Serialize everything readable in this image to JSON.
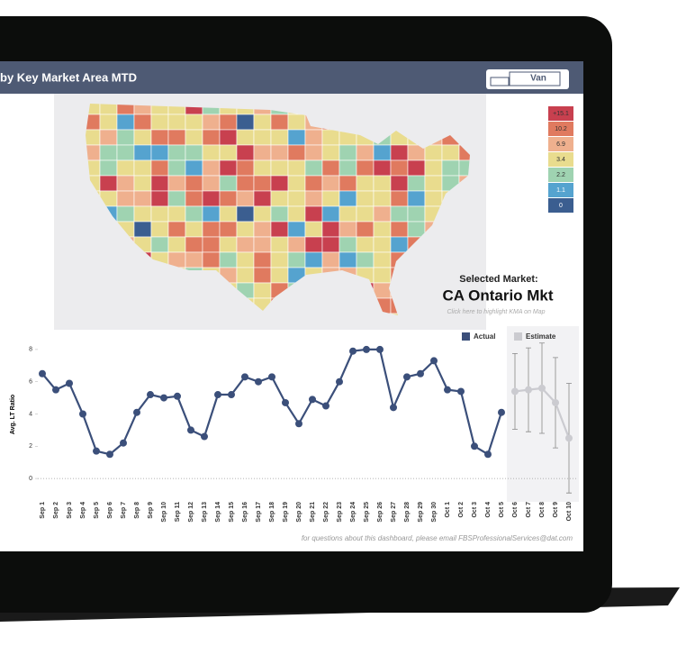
{
  "header": {
    "title": "by Key Market Area MTD",
    "mode": "Van"
  },
  "map_legend": {
    "labels": [
      "+15.1",
      "10.2",
      "6.9",
      "3.4",
      "2.2",
      "1.1",
      "0"
    ],
    "colors": [
      "#c8404f",
      "#e07a5f",
      "#efb08e",
      "#e9dc8e",
      "#9fd3b1",
      "#55a3cf",
      "#3b5e90"
    ]
  },
  "selected_market": {
    "heading": "Selected Market:",
    "name": "CA Ontario Mkt",
    "hint": "Click here to highlight KMA on Map"
  },
  "chart_data": {
    "type": "line",
    "y_label": "Avg. LT Ratio",
    "categories": [
      "Sep 1",
      "Sep 2",
      "Sep 3",
      "Sep 4",
      "Sep 5",
      "Sep 6",
      "Sep 7",
      "Sep 8",
      "Sep 9",
      "Sep 10",
      "Sep 11",
      "Sep 12",
      "Sep 13",
      "Sep 14",
      "Sep 15",
      "Sep 16",
      "Sep 17",
      "Sep 18",
      "Sep 19",
      "Sep 20",
      "Sep 21",
      "Sep 22",
      "Sep 23",
      "Sep 24",
      "Sep 25",
      "Sep 26",
      "Sep 27",
      "Sep 28",
      "Sep 29",
      "Sep 30",
      "Oct 1",
      "Oct 2",
      "Oct 3",
      "Oct 4",
      "Oct 5",
      "Oct 6",
      "Oct 7",
      "Oct 8",
      "Oct 9",
      "Oct 10"
    ],
    "series": [
      {
        "name": "Actual",
        "color": "#3b4f7a",
        "values": [
          6.5,
          5.5,
          5.9,
          4.0,
          1.7,
          1.5,
          2.2,
          4.1,
          5.2,
          5.0,
          5.1,
          3.0,
          2.6,
          5.2,
          5.2,
          6.3,
          6.0,
          6.3,
          4.7,
          3.4,
          4.9,
          4.5,
          6.0,
          7.9,
          8.0,
          8.0,
          4.4,
          6.3,
          6.5,
          7.3,
          5.5,
          5.4,
          2.0,
          1.5,
          4.1,
          null,
          null,
          null,
          null,
          null
        ]
      },
      {
        "name": "Estimate",
        "color": "#cbcbd0",
        "values": [
          null,
          null,
          null,
          null,
          null,
          null,
          null,
          null,
          null,
          null,
          null,
          null,
          null,
          null,
          null,
          null,
          null,
          null,
          null,
          null,
          null,
          null,
          null,
          null,
          null,
          null,
          null,
          null,
          null,
          null,
          null,
          null,
          null,
          null,
          null,
          5.4,
          5.5,
          5.6,
          4.7,
          2.5
        ],
        "errors": [
          null,
          null,
          null,
          null,
          null,
          null,
          null,
          null,
          null,
          null,
          null,
          null,
          null,
          null,
          null,
          null,
          null,
          null,
          null,
          null,
          null,
          null,
          null,
          null,
          null,
          null,
          null,
          null,
          null,
          null,
          null,
          null,
          null,
          null,
          null,
          2.35,
          2.6,
          2.8,
          2.8,
          3.4
        ]
      }
    ],
    "ylim": [
      -1,
      9
    ],
    "yticks": [
      0,
      2,
      4,
      6,
      8
    ]
  },
  "footer": "for questions about this dashboard, please email FBSProfessionalServices@dat.com"
}
